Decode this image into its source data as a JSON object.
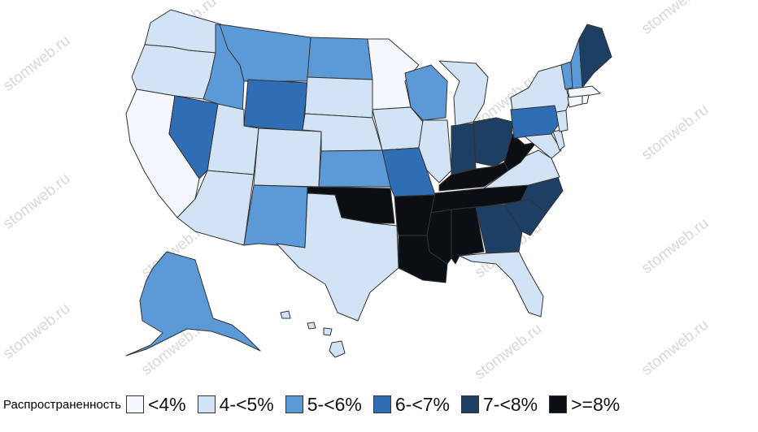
{
  "watermark": "stomweb.ru",
  "legend": {
    "title": "Распространенность",
    "items": [
      {
        "label": "<4%",
        "color": "#f4f7fd"
      },
      {
        "label": "4-<5%",
        "color": "#d2e3f6"
      },
      {
        "label": "5-<6%",
        "color": "#5b9ad6"
      },
      {
        "label": "6-<7%",
        "color": "#2f6db5"
      },
      {
        "label": "7-<8%",
        "color": "#1c3f63"
      },
      {
        "label": ">=8%",
        "color": "#0b0f14"
      }
    ]
  },
  "map": {
    "type": "choropleth",
    "regions": [
      {
        "name": "Washington",
        "class": 1
      },
      {
        "name": "Oregon",
        "class": 1
      },
      {
        "name": "California",
        "class": 0
      },
      {
        "name": "Nevada",
        "class": 3
      },
      {
        "name": "Idaho",
        "class": 2
      },
      {
        "name": "Montana",
        "class": 2
      },
      {
        "name": "Wyoming",
        "class": 3
      },
      {
        "name": "Utah",
        "class": 1
      },
      {
        "name": "Colorado",
        "class": 1
      },
      {
        "name": "Arizona",
        "class": 1
      },
      {
        "name": "New Mexico",
        "class": 2
      },
      {
        "name": "North Dakota",
        "class": 2
      },
      {
        "name": "South Dakota",
        "class": 1
      },
      {
        "name": "Nebraska",
        "class": 1
      },
      {
        "name": "Kansas",
        "class": 2
      },
      {
        "name": "Oklahoma",
        "class": 5
      },
      {
        "name": "Texas",
        "class": 1
      },
      {
        "name": "Minnesota",
        "class": 0
      },
      {
        "name": "Iowa",
        "class": 1
      },
      {
        "name": "Missouri",
        "class": 3
      },
      {
        "name": "Arkansas",
        "class": 5
      },
      {
        "name": "Louisiana",
        "class": 5
      },
      {
        "name": "Wisconsin",
        "class": 2
      },
      {
        "name": "Illinois",
        "class": 1
      },
      {
        "name": "Michigan",
        "class": 1
      },
      {
        "name": "Indiana",
        "class": 4
      },
      {
        "name": "Ohio",
        "class": 4
      },
      {
        "name": "Kentucky",
        "class": 5
      },
      {
        "name": "Tennessee",
        "class": 5
      },
      {
        "name": "Mississippi",
        "class": 5
      },
      {
        "name": "Alabama",
        "class": 5
      },
      {
        "name": "Georgia",
        "class": 4
      },
      {
        "name": "Florida",
        "class": 1
      },
      {
        "name": "South Carolina",
        "class": 4
      },
      {
        "name": "North Carolina",
        "class": 4
      },
      {
        "name": "Virginia",
        "class": 1
      },
      {
        "name": "West Virginia",
        "class": 5
      },
      {
        "name": "Pennsylvania",
        "class": 3
      },
      {
        "name": "New York",
        "class": 1
      },
      {
        "name": "Vermont",
        "class": 2
      },
      {
        "name": "New Hampshire",
        "class": 2
      },
      {
        "name": "Maine",
        "class": 4
      },
      {
        "name": "Massachusetts",
        "class": 0
      },
      {
        "name": "Rhode Island",
        "class": 0
      },
      {
        "name": "Connecticut",
        "class": 0
      },
      {
        "name": "New Jersey",
        "class": 1
      },
      {
        "name": "Delaware",
        "class": 1
      },
      {
        "name": "Maryland",
        "class": 1
      },
      {
        "name": "Alaska",
        "class": 2
      },
      {
        "name": "Hawaii",
        "class": 1
      }
    ]
  }
}
